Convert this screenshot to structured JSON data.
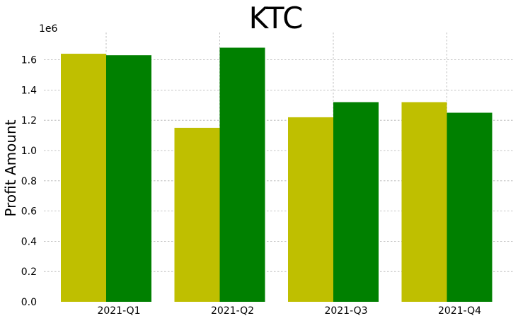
{
  "chart_data": {
    "type": "bar",
    "title": "KTC",
    "xlabel": "",
    "ylabel": "Profit Amount",
    "y_scale_label": "1e6",
    "y_scale_factor": 1000000,
    "ylim": [
      0,
      1760000
    ],
    "y_ticks": [
      0,
      200000,
      400000,
      600000,
      800000,
      1000000,
      1200000,
      1400000,
      1600000
    ],
    "y_tick_labels": [
      "0.0",
      "0.2",
      "0.4",
      "0.6",
      "0.8",
      "1.0",
      "1.2",
      "1.4",
      "1.6"
    ],
    "categories": [
      "2021-Q1",
      "2021-Q2",
      "2021-Q3",
      "2021-Q4"
    ],
    "grid": true,
    "legend": "none",
    "series": [
      {
        "color": "#bfbf00",
        "values": [
          1640000,
          1150000,
          1220000,
          1320000
        ]
      },
      {
        "color": "#008000",
        "values": [
          1630000,
          1680000,
          1320000,
          1250000
        ]
      }
    ]
  }
}
